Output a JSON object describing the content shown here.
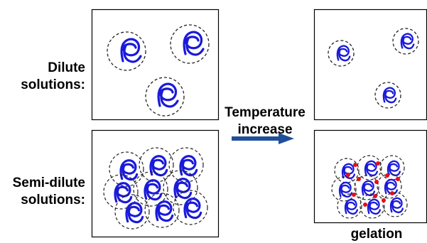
{
  "labels": {
    "dilute_line1": "Dilute",
    "dilute_line2": "solutions:",
    "semidilute_line1": "Semi-dilute",
    "semidilute_line2": "solutions:",
    "arrow_line1": "Temperature",
    "arrow_line2": "increase",
    "gelation": "gelation"
  },
  "colors": {
    "chain": "#1a1adb",
    "crosslink": "#e0101a",
    "arrow": "#1f4f9a",
    "border": "#000000",
    "dashed": "#222222"
  },
  "icons": [
    "polymer-coil-icon",
    "crosslink-dot-icon",
    "right-arrow-icon"
  ]
}
